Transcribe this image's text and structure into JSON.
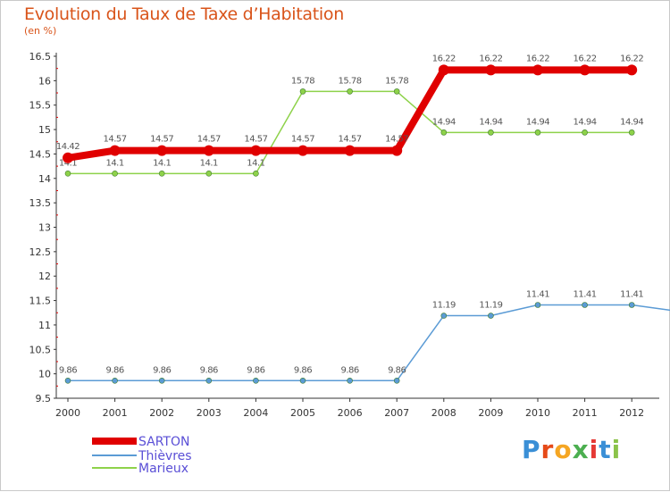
{
  "title": "Evolution du Taux de Taxe d’Habitation",
  "subtitle": "(en %)",
  "logo": {
    "text": "Proxiti",
    "letters": [
      "P",
      "r",
      "o",
      "x",
      "i",
      "t",
      "i"
    ],
    "colors": [
      "#3a8fd6",
      "#e64a19",
      "#f5a623",
      "#4caf50",
      "#e53935",
      "#3a8fd6",
      "#8bc34a"
    ]
  },
  "chart_data": {
    "type": "line",
    "x": [
      "2000",
      "2001",
      "2002",
      "2003",
      "2004",
      "2005",
      "2006",
      "2007",
      "2008",
      "2009",
      "2010",
      "2011",
      "2012"
    ],
    "ylim": [
      9.5,
      16.5
    ],
    "yticks": [
      "9.5",
      "10",
      "10.5",
      "11",
      "11.5",
      "12",
      "12.5",
      "13",
      "13.5",
      "14",
      "14.5",
      "15",
      "15.5",
      "16",
      "16.5"
    ],
    "grid": false,
    "legend_placement": "bottom-left",
    "series": [
      {
        "name": "SARTON",
        "color": "#e00000",
        "width": 8,
        "values": [
          14.42,
          14.57,
          14.57,
          14.57,
          14.57,
          14.57,
          14.57,
          14.57,
          16.22,
          16.22,
          16.22,
          16.22,
          16.22
        ],
        "labels": [
          "14.42",
          "14.57",
          "14.57",
          "14.57",
          "14.57",
          "14.57",
          "14.57",
          "14.57",
          "16.22",
          "16.22",
          "16.22",
          "16.22",
          "16.22"
        ]
      },
      {
        "name": "Thièvres",
        "color": "#5b9bd5",
        "width": 1.5,
        "values": [
          9.86,
          9.86,
          9.86,
          9.86,
          9.86,
          9.86,
          9.86,
          9.86,
          11.19,
          11.19,
          11.41,
          11.41,
          11.41
        ],
        "labels": [
          "9.86",
          "9.86",
          "9.86",
          "9.86",
          "9.86",
          "9.86",
          "9.86",
          "9.86",
          "11.19",
          "11.19",
          "11.41",
          "11.41",
          "11.41"
        ]
      },
      {
        "name": "Marieux",
        "color": "#8ed24a",
        "width": 1.5,
        "values": [
          14.1,
          14.1,
          14.1,
          14.1,
          14.1,
          15.78,
          15.78,
          15.78,
          14.94,
          14.94,
          14.94,
          14.94,
          14.94
        ],
        "labels": [
          "14.1",
          "14.1",
          "14.1",
          "14.1",
          "14.1",
          "15.78",
          "15.78",
          "15.78",
          "14.94",
          "14.94",
          "14.94",
          "14.94",
          "14.94"
        ]
      }
    ]
  }
}
